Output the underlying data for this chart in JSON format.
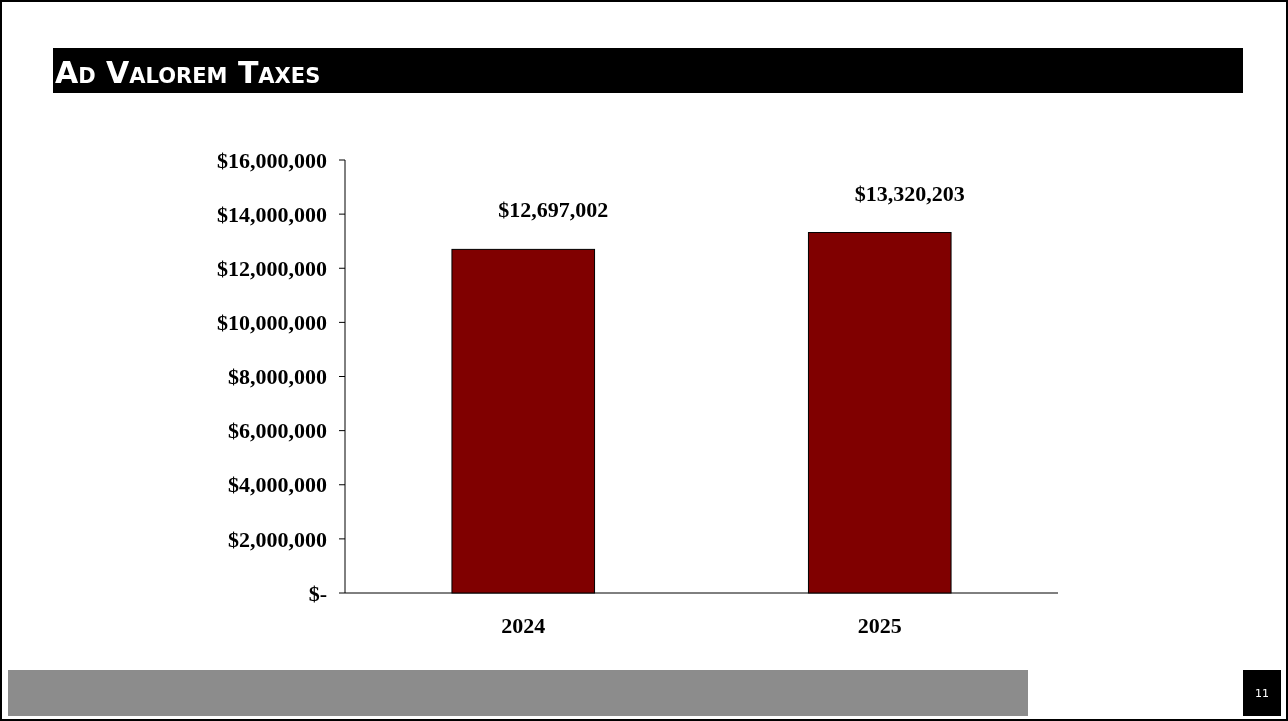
{
  "chart_data": {
    "type": "bar",
    "title": "Ad Valorem Taxes",
    "categories": [
      "2024",
      "2025"
    ],
    "values": [
      12697002,
      13320203
    ],
    "value_labels": [
      "$12,697,002",
      "$13,320,203"
    ],
    "color": "#800000",
    "ylim": [
      0,
      16000000
    ],
    "yticks": [
      {
        "value": 0,
        "label": "$-"
      },
      {
        "value": 2000000,
        "label": "$2,000,000"
      },
      {
        "value": 4000000,
        "label": "$4,000,000"
      },
      {
        "value": 6000000,
        "label": "$6,000,000"
      },
      {
        "value": 8000000,
        "label": "$8,000,000"
      },
      {
        "value": 10000000,
        "label": "$10,000,000"
      },
      {
        "value": 12000000,
        "label": "$12,000,000"
      },
      {
        "value": 14000000,
        "label": "$14,000,000"
      },
      {
        "value": 16000000,
        "label": "$16,000,000"
      }
    ],
    "annotations": [
      "11"
    ]
  }
}
